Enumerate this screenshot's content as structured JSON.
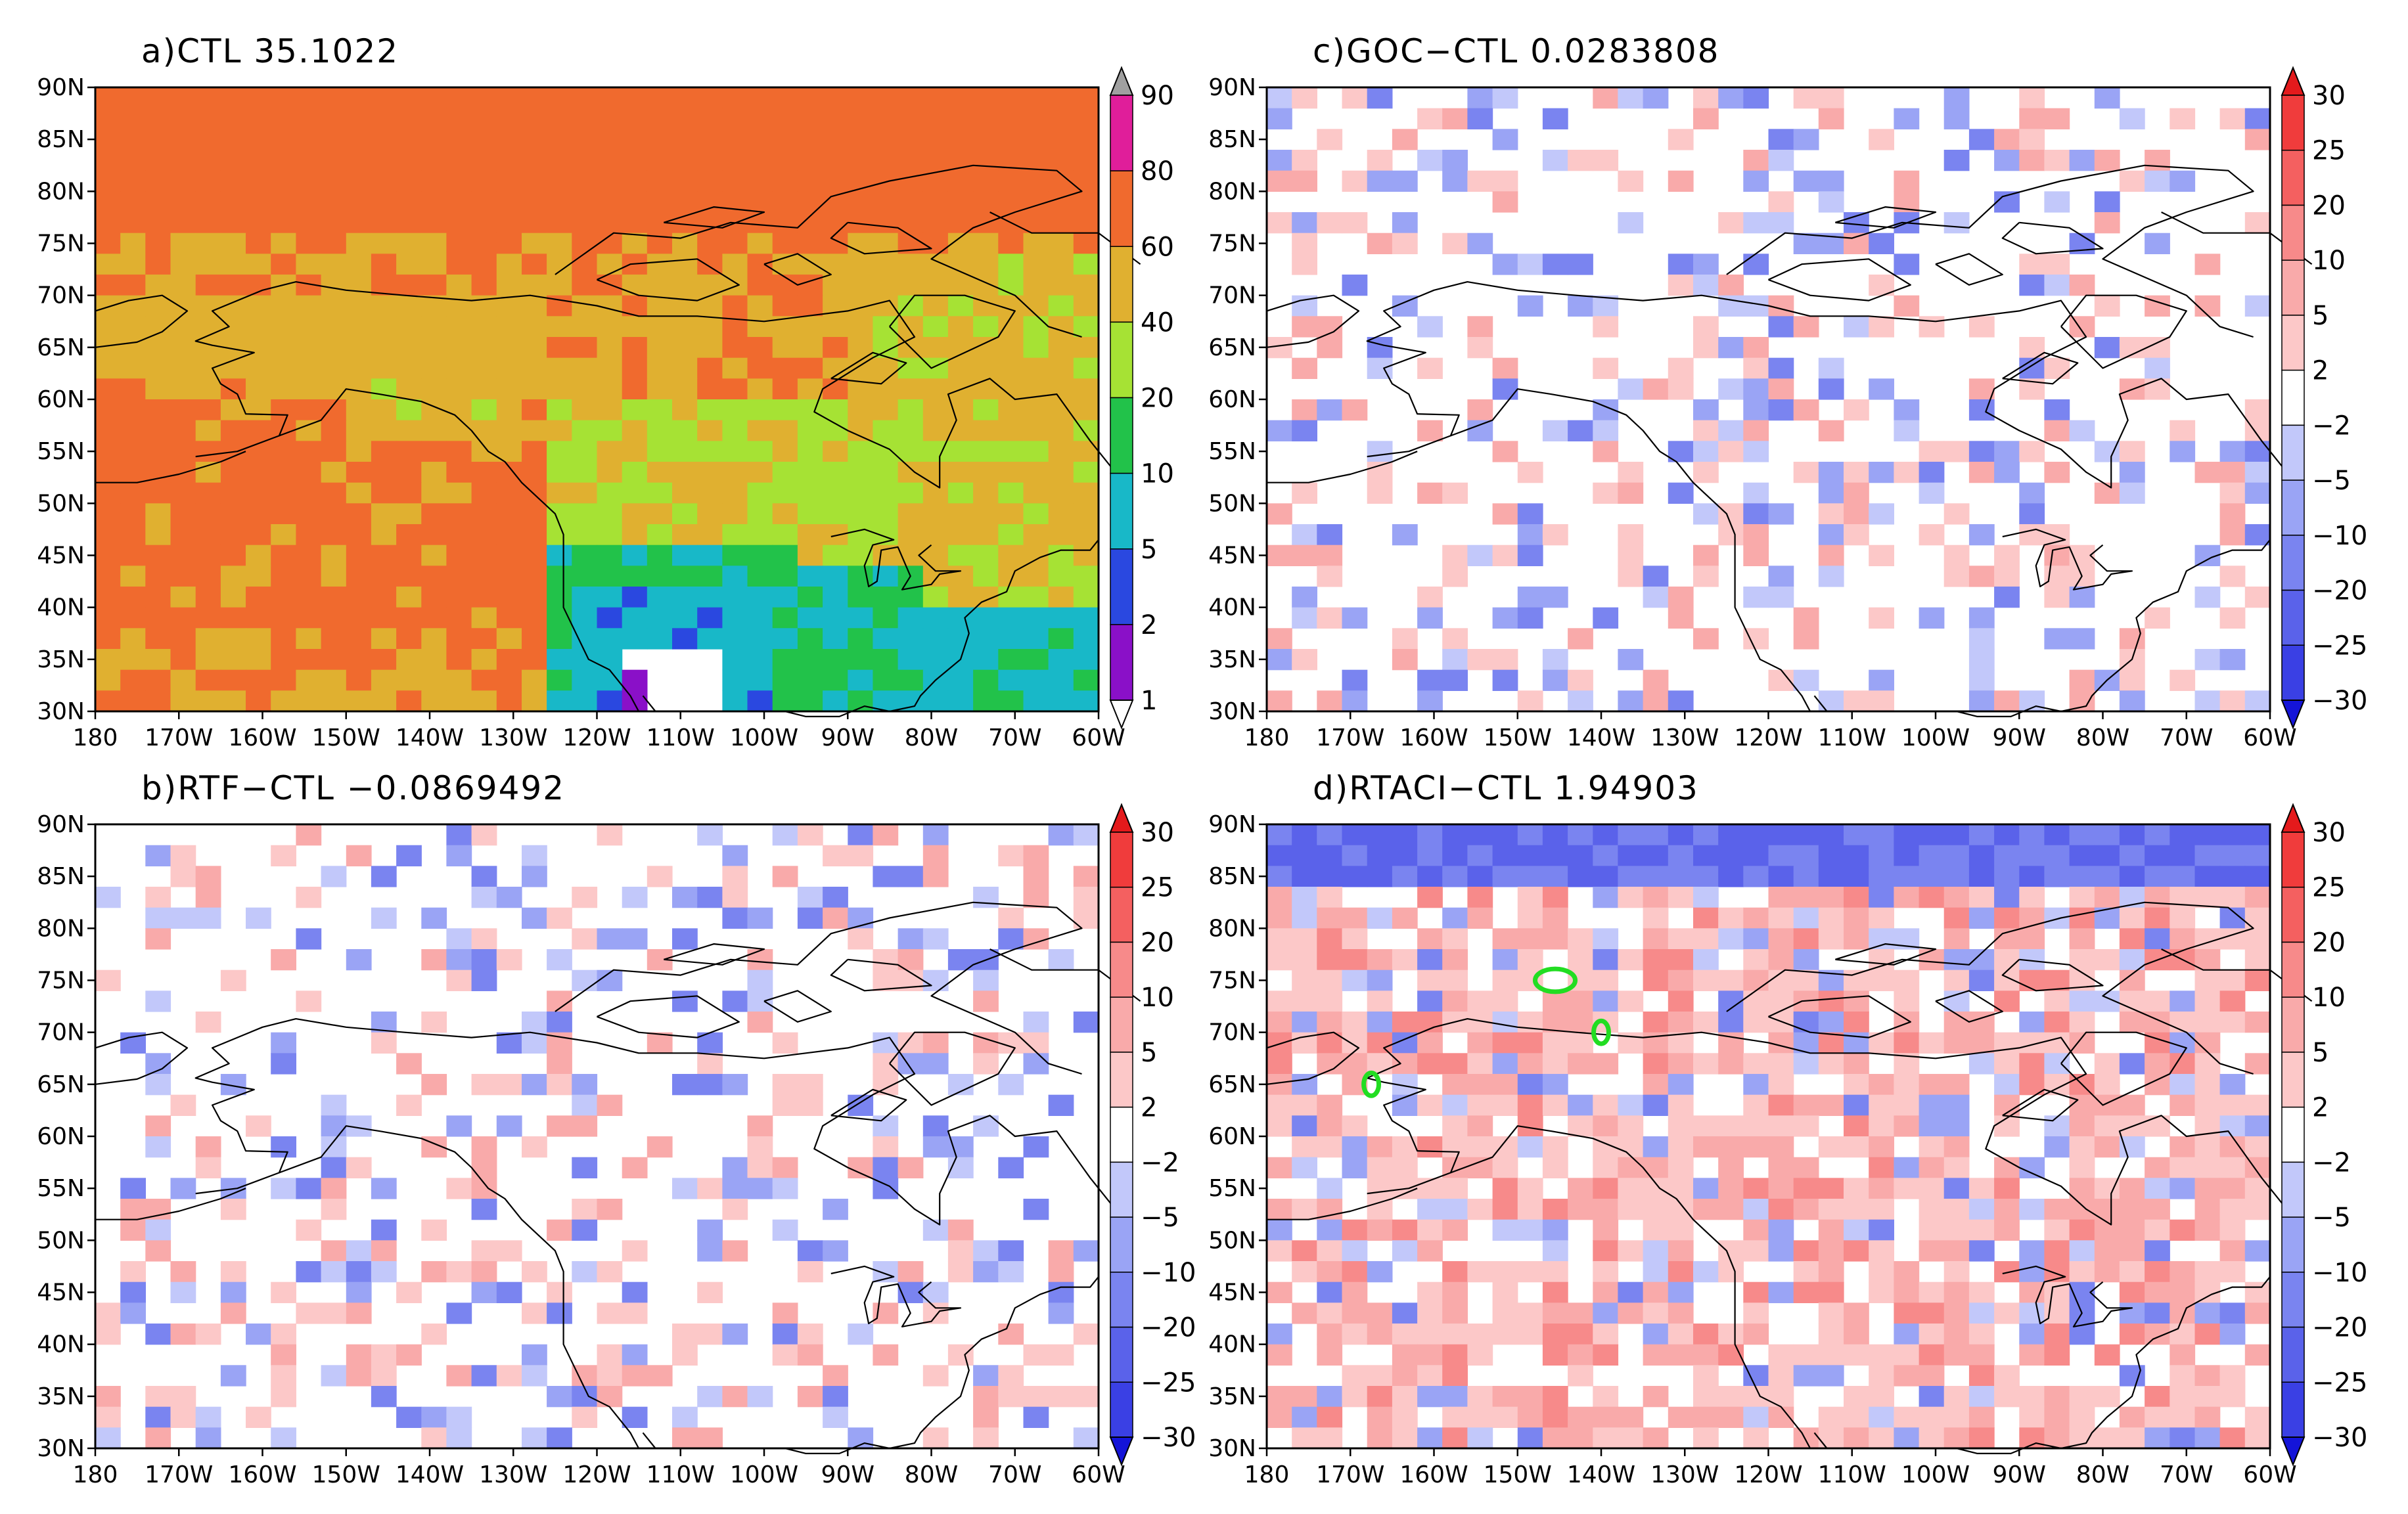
{
  "figure": {
    "lat_ticks": [
      "90N",
      "85N",
      "80N",
      "75N",
      "70N",
      "65N",
      "60N",
      "55N",
      "50N",
      "45N",
      "40N",
      "35N",
      "30N"
    ],
    "lon_ticks": [
      "180",
      "170W",
      "160W",
      "150W",
      "140W",
      "130W",
      "120W",
      "110W",
      "100W",
      "90W",
      "80W",
      "70W",
      "60W"
    ],
    "lat_range": [
      30,
      90
    ],
    "lon_range": [
      -180,
      -60
    ],
    "scales": {
      "ctl": {
        "labels": [
          "90",
          "80",
          "60",
          "40",
          "20",
          "10",
          "5",
          "2",
          "1"
        ],
        "colors": [
          "#a0a0a0",
          "#e01e9a",
          "#f06a2e",
          "#e0b030",
          "#a6e234",
          "#22c24a",
          "#18b8c8",
          "#2a48e0",
          "#8a10c8",
          "#ffffff"
        ]
      },
      "diff": {
        "labels": [
          "30",
          "25",
          "20",
          "10",
          "5",
          "2",
          "−2",
          "−5",
          "−10",
          "−20",
          "−25",
          "−30"
        ],
        "colors": [
          "#e41a1c",
          "#f03c3c",
          "#f46060",
          "#f78a8a",
          "#f9aaaa",
          "#fcc8c8",
          "#ffffff",
          "#c2c8fa",
          "#9aa4f5",
          "#7a84f0",
          "#5a62ea",
          "#3a40e4",
          "#1414d8"
        ]
      }
    },
    "panels": [
      {
        "id": "a",
        "title": "a)CTL  35.1022",
        "scale": "ctl",
        "field_style": "absolute"
      },
      {
        "id": "c",
        "title": "c)GOC−CTL  0.0283808",
        "scale": "diff",
        "field_style": "sparse"
      },
      {
        "id": "b",
        "title": "b)RTF−CTL  −0.0869492",
        "scale": "diff",
        "field_style": "sparse"
      },
      {
        "id": "d",
        "title": "d)RTACI−CTL  1.94903",
        "scale": "diff",
        "field_style": "dense",
        "markers": [
          {
            "lon": -145.5,
            "lat": 75,
            "rx_deg": 2.4,
            "ry_deg": 1.1
          },
          {
            "lon": -140,
            "lat": 70,
            "rx_deg": 0.9,
            "ry_deg": 1.1
          },
          {
            "lon": -167.5,
            "lat": 65,
            "rx_deg": 0.9,
            "ry_deg": 1.1
          }
        ],
        "marker_color": "#22dd22"
      }
    ]
  }
}
